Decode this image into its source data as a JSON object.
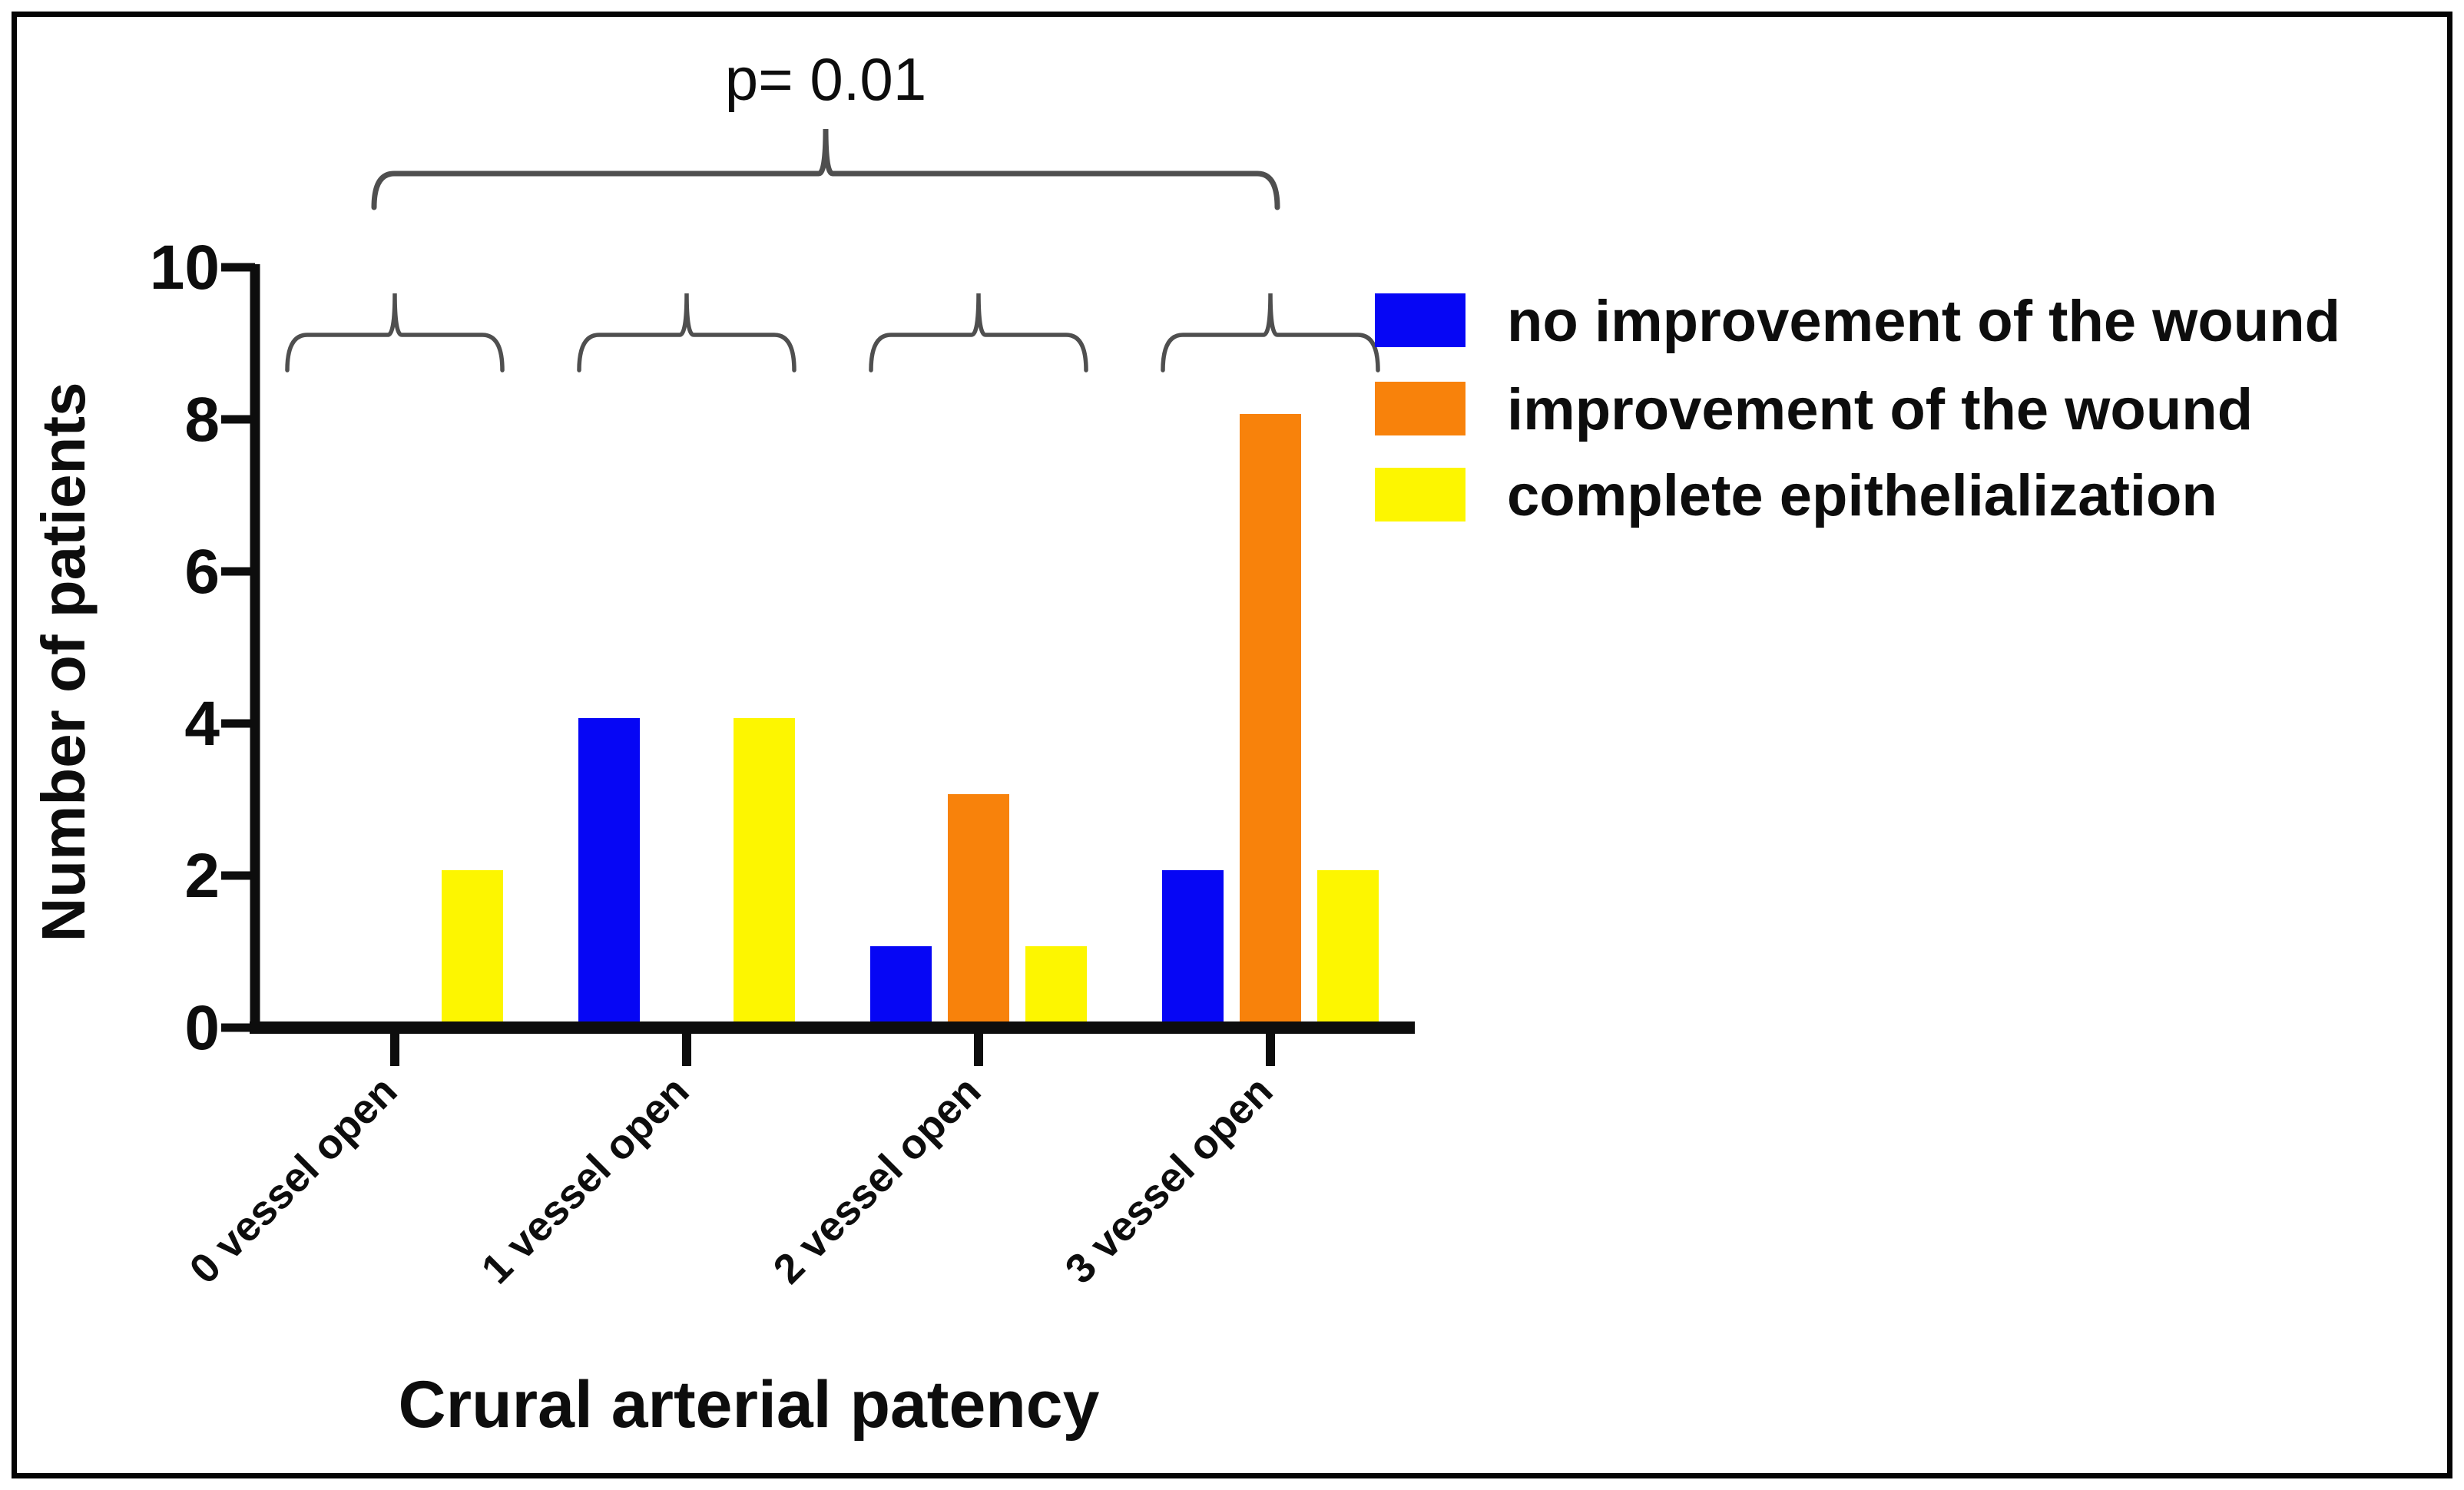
{
  "figure": {
    "p_value_label": "p= 0.01",
    "y_axis_title": "Number of patients",
    "x_axis_title": "Crural arterial patency"
  },
  "legend": {
    "items": [
      {
        "label": "no improvement of the wound",
        "color": "#0606f5"
      },
      {
        "label": "improvement of the wound",
        "color": "#f8820b"
      },
      {
        "label": "complete epithelialization",
        "color": "#fdf600"
      }
    ]
  },
  "chart_data": {
    "type": "bar",
    "title": "",
    "categories": [
      "0 vessel open",
      "1 vessel open",
      "2 vessel open",
      "3 vessel open"
    ],
    "series": [
      {
        "name": "no improvement of the wound",
        "color": "#0606f5",
        "values": [
          0,
          4,
          1,
          2
        ]
      },
      {
        "name": "improvement of the wound",
        "color": "#f8820b",
        "values": [
          0,
          0,
          3,
          8
        ]
      },
      {
        "name": "complete epithelialization",
        "color": "#fdf600",
        "values": [
          2,
          4,
          1,
          2
        ]
      }
    ],
    "xlabel": "Crural arterial patency",
    "ylabel": "Number of patients",
    "ylim": [
      0,
      10
    ],
    "yticks": [
      0,
      2,
      4,
      6,
      8,
      10
    ],
    "grid": false,
    "legend_position": "upper right",
    "annotations": {
      "p_value_label": "p= 0.01",
      "overall_comparison_brace": "spans all four patency groups",
      "group_braces_count": 4
    }
  }
}
